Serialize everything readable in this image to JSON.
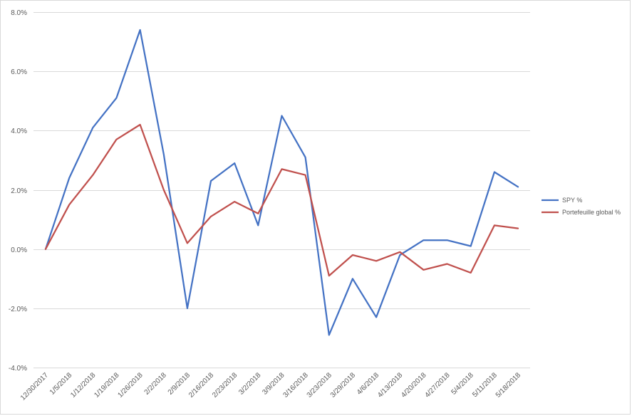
{
  "chart_data": {
    "type": "line",
    "title": "",
    "xlabel": "",
    "ylabel": "",
    "ylim": [
      -0.04,
      0.08
    ],
    "y_ticks": [
      -0.04,
      -0.02,
      0.0,
      0.02,
      0.04,
      0.06,
      0.08
    ],
    "y_tick_labels": [
      "-4.0%",
      "-2.0%",
      "0.0%",
      "2.0%",
      "4.0%",
      "6.0%",
      "8.0%"
    ],
    "grid": true,
    "legend_position": "right",
    "categories": [
      "12/30/2017",
      "1/5/2018",
      "1/12/2018",
      "1/19/2018",
      "1/26/2018",
      "2/2/2018",
      "2/9/2018",
      "2/16/2018",
      "2/23/2018",
      "3/2/2018",
      "3/9/2018",
      "3/16/2018",
      "3/23/2018",
      "3/29/2018",
      "4/6/2018",
      "4/13/2018",
      "4/20/2018",
      "4/27/2018",
      "5/4/2018",
      "5/11/2018",
      "5/18/2018"
    ],
    "series": [
      {
        "name": "SPY %",
        "color": "#4472c4",
        "values": [
          0.0,
          0.024,
          0.041,
          0.051,
          0.074,
          0.032,
          -0.02,
          0.023,
          0.029,
          0.008,
          0.045,
          0.031,
          -0.029,
          -0.01,
          -0.023,
          -0.002,
          0.003,
          0.003,
          0.001,
          0.026,
          0.021
        ]
      },
      {
        "name": "Portefeuille global %",
        "color": "#c0504d",
        "values": [
          0.0,
          0.015,
          0.025,
          0.037,
          0.042,
          0.02,
          0.002,
          0.011,
          0.016,
          0.012,
          0.027,
          0.025,
          -0.009,
          -0.002,
          -0.004,
          -0.001,
          -0.007,
          -0.005,
          -0.008,
          0.008,
          0.007
        ]
      }
    ]
  },
  "colors": {
    "gridline": "#d9d9d9",
    "axis_text": "#595959"
  }
}
